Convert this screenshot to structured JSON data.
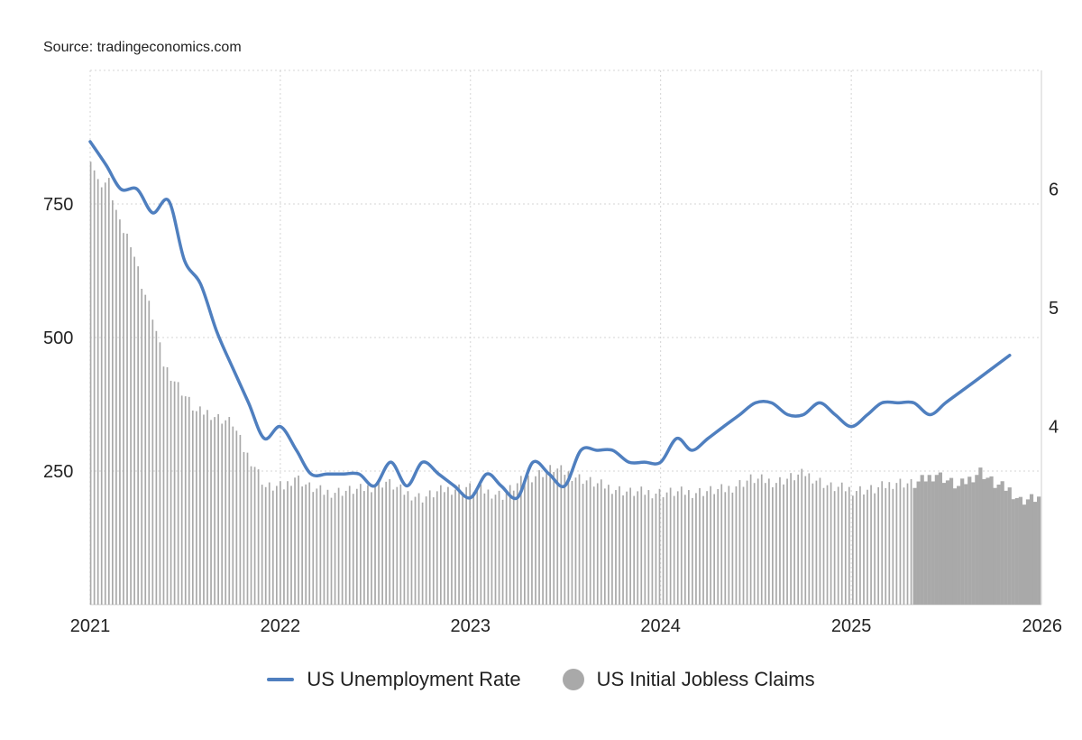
{
  "source": "Source: tradingeconomics.com",
  "colors": {
    "line": "#4f7fbf",
    "bars": "#a9a9a9",
    "grid": "#d4d4d4"
  },
  "chart_data": {
    "type": "bar",
    "title": "",
    "xlabel": "",
    "ylabel": "",
    "x_axis": {
      "type": "date",
      "range": [
        "2021-01-01",
        "2026-01-01"
      ],
      "ticks": [
        "2021",
        "2022",
        "2023",
        "2024",
        "2025",
        "2026"
      ]
    },
    "y_left": {
      "ylim": [
        0,
        1000
      ],
      "ticks": [
        250,
        500,
        750
      ]
    },
    "y_right": {
      "ylim": [
        2.5,
        7.0
      ],
      "ticks": [
        4,
        5,
        6
      ]
    },
    "grid": true,
    "legend_position": "bottom",
    "series": [
      {
        "name": "US Unemployment Rate",
        "type": "line",
        "axis": "right",
        "points": [
          [
            "2021-01-01",
            6.4
          ],
          [
            "2021-02-01",
            6.2
          ],
          [
            "2021-03-01",
            6.0
          ],
          [
            "2021-04-01",
            6.0
          ],
          [
            "2021-05-01",
            5.8
          ],
          [
            "2021-06-01",
            5.9
          ],
          [
            "2021-07-01",
            5.4
          ],
          [
            "2021-08-01",
            5.2
          ],
          [
            "2021-09-01",
            4.8
          ],
          [
            "2021-10-01",
            4.5
          ],
          [
            "2021-11-01",
            4.2
          ],
          [
            "2021-12-01",
            3.9
          ],
          [
            "2022-01-01",
            4.0
          ],
          [
            "2022-02-01",
            3.8
          ],
          [
            "2022-03-01",
            3.6
          ],
          [
            "2022-04-01",
            3.6
          ],
          [
            "2022-05-01",
            3.6
          ],
          [
            "2022-06-01",
            3.6
          ],
          [
            "2022-07-01",
            3.5
          ],
          [
            "2022-08-01",
            3.7
          ],
          [
            "2022-09-01",
            3.5
          ],
          [
            "2022-10-01",
            3.7
          ],
          [
            "2022-11-01",
            3.6
          ],
          [
            "2022-12-01",
            3.5
          ],
          [
            "2023-01-01",
            3.4
          ],
          [
            "2023-02-01",
            3.6
          ],
          [
            "2023-03-01",
            3.5
          ],
          [
            "2023-04-01",
            3.4
          ],
          [
            "2023-05-01",
            3.7
          ],
          [
            "2023-06-01",
            3.6
          ],
          [
            "2023-07-01",
            3.5
          ],
          [
            "2023-08-01",
            3.8
          ],
          [
            "2023-09-01",
            3.8
          ],
          [
            "2023-10-01",
            3.8
          ],
          [
            "2023-11-01",
            3.7
          ],
          [
            "2023-12-01",
            3.7
          ],
          [
            "2024-01-01",
            3.7
          ],
          [
            "2024-02-01",
            3.9
          ],
          [
            "2024-03-01",
            3.8
          ],
          [
            "2024-04-01",
            3.9
          ],
          [
            "2024-05-01",
            4.0
          ],
          [
            "2024-06-01",
            4.1
          ],
          [
            "2024-07-01",
            4.2
          ],
          [
            "2024-08-01",
            4.2
          ],
          [
            "2024-09-01",
            4.1
          ],
          [
            "2024-10-01",
            4.1
          ],
          [
            "2024-11-01",
            4.2
          ],
          [
            "2024-12-01",
            4.1
          ],
          [
            "2025-01-01",
            4.0
          ],
          [
            "2025-02-01",
            4.1
          ],
          [
            "2025-03-01",
            4.2
          ],
          [
            "2025-04-01",
            4.2
          ],
          [
            "2025-05-01",
            4.2
          ],
          [
            "2025-06-01",
            4.1
          ],
          [
            "2025-07-01",
            4.2
          ],
          [
            "2025-08-01",
            4.3
          ],
          [
            "2025-09-01",
            4.4
          ],
          [
            "2025-11-01",
            4.6
          ]
        ]
      },
      {
        "name": "US Initial Jobless Claims",
        "type": "bar",
        "axis": "left",
        "unit": "thousands",
        "anchors": [
          [
            "2021-01-02",
            840
          ],
          [
            "2021-01-16",
            790
          ],
          [
            "2021-02-06",
            790
          ],
          [
            "2021-02-27",
            710
          ],
          [
            "2021-03-20",
            680
          ],
          [
            "2021-04-10",
            600
          ],
          [
            "2021-05-01",
            540
          ],
          [
            "2021-05-22",
            450
          ],
          [
            "2021-06-12",
            420
          ],
          [
            "2021-07-03",
            390
          ],
          [
            "2021-07-24",
            360
          ],
          [
            "2021-08-14",
            360
          ],
          [
            "2021-09-04",
            350
          ],
          [
            "2021-10-02",
            340
          ],
          [
            "2021-10-23",
            290
          ],
          [
            "2021-11-13",
            260
          ],
          [
            "2021-12-04",
            220
          ],
          [
            "2022-01-08",
            220
          ],
          [
            "2022-01-29",
            240
          ],
          [
            "2022-02-26",
            220
          ],
          [
            "2022-03-26",
            210
          ],
          [
            "2022-06-04",
            215
          ],
          [
            "2022-07-23",
            230
          ],
          [
            "2022-08-27",
            210
          ],
          [
            "2022-10-01",
            200
          ],
          [
            "2022-11-12",
            215
          ],
          [
            "2022-12-24",
            220
          ],
          [
            "2023-03-04",
            205
          ],
          [
            "2023-04-15",
            235
          ],
          [
            "2023-06-10",
            255
          ],
          [
            "2023-07-22",
            240
          ],
          [
            "2023-09-02",
            225
          ],
          [
            "2023-11-04",
            210
          ],
          [
            "2024-01-13",
            210
          ],
          [
            "2024-02-24",
            210
          ],
          [
            "2024-05-04",
            215
          ],
          [
            "2024-06-22",
            235
          ],
          [
            "2024-08-10",
            230
          ],
          [
            "2024-10-05",
            245
          ],
          [
            "2024-11-23",
            220
          ],
          [
            "2025-01-04",
            215
          ],
          [
            "2025-02-15",
            215
          ],
          [
            "2025-03-29",
            230
          ],
          [
            "2025-05-03",
            225
          ],
          [
            "2025-06-14",
            245
          ],
          [
            "2025-07-26",
            220
          ],
          [
            "2025-09-06",
            250
          ],
          [
            "2025-10-04",
            225
          ],
          [
            "2025-11-01",
            215
          ],
          [
            "2025-11-22",
            195
          ],
          [
            "2025-12-27",
            200
          ]
        ]
      }
    ]
  }
}
